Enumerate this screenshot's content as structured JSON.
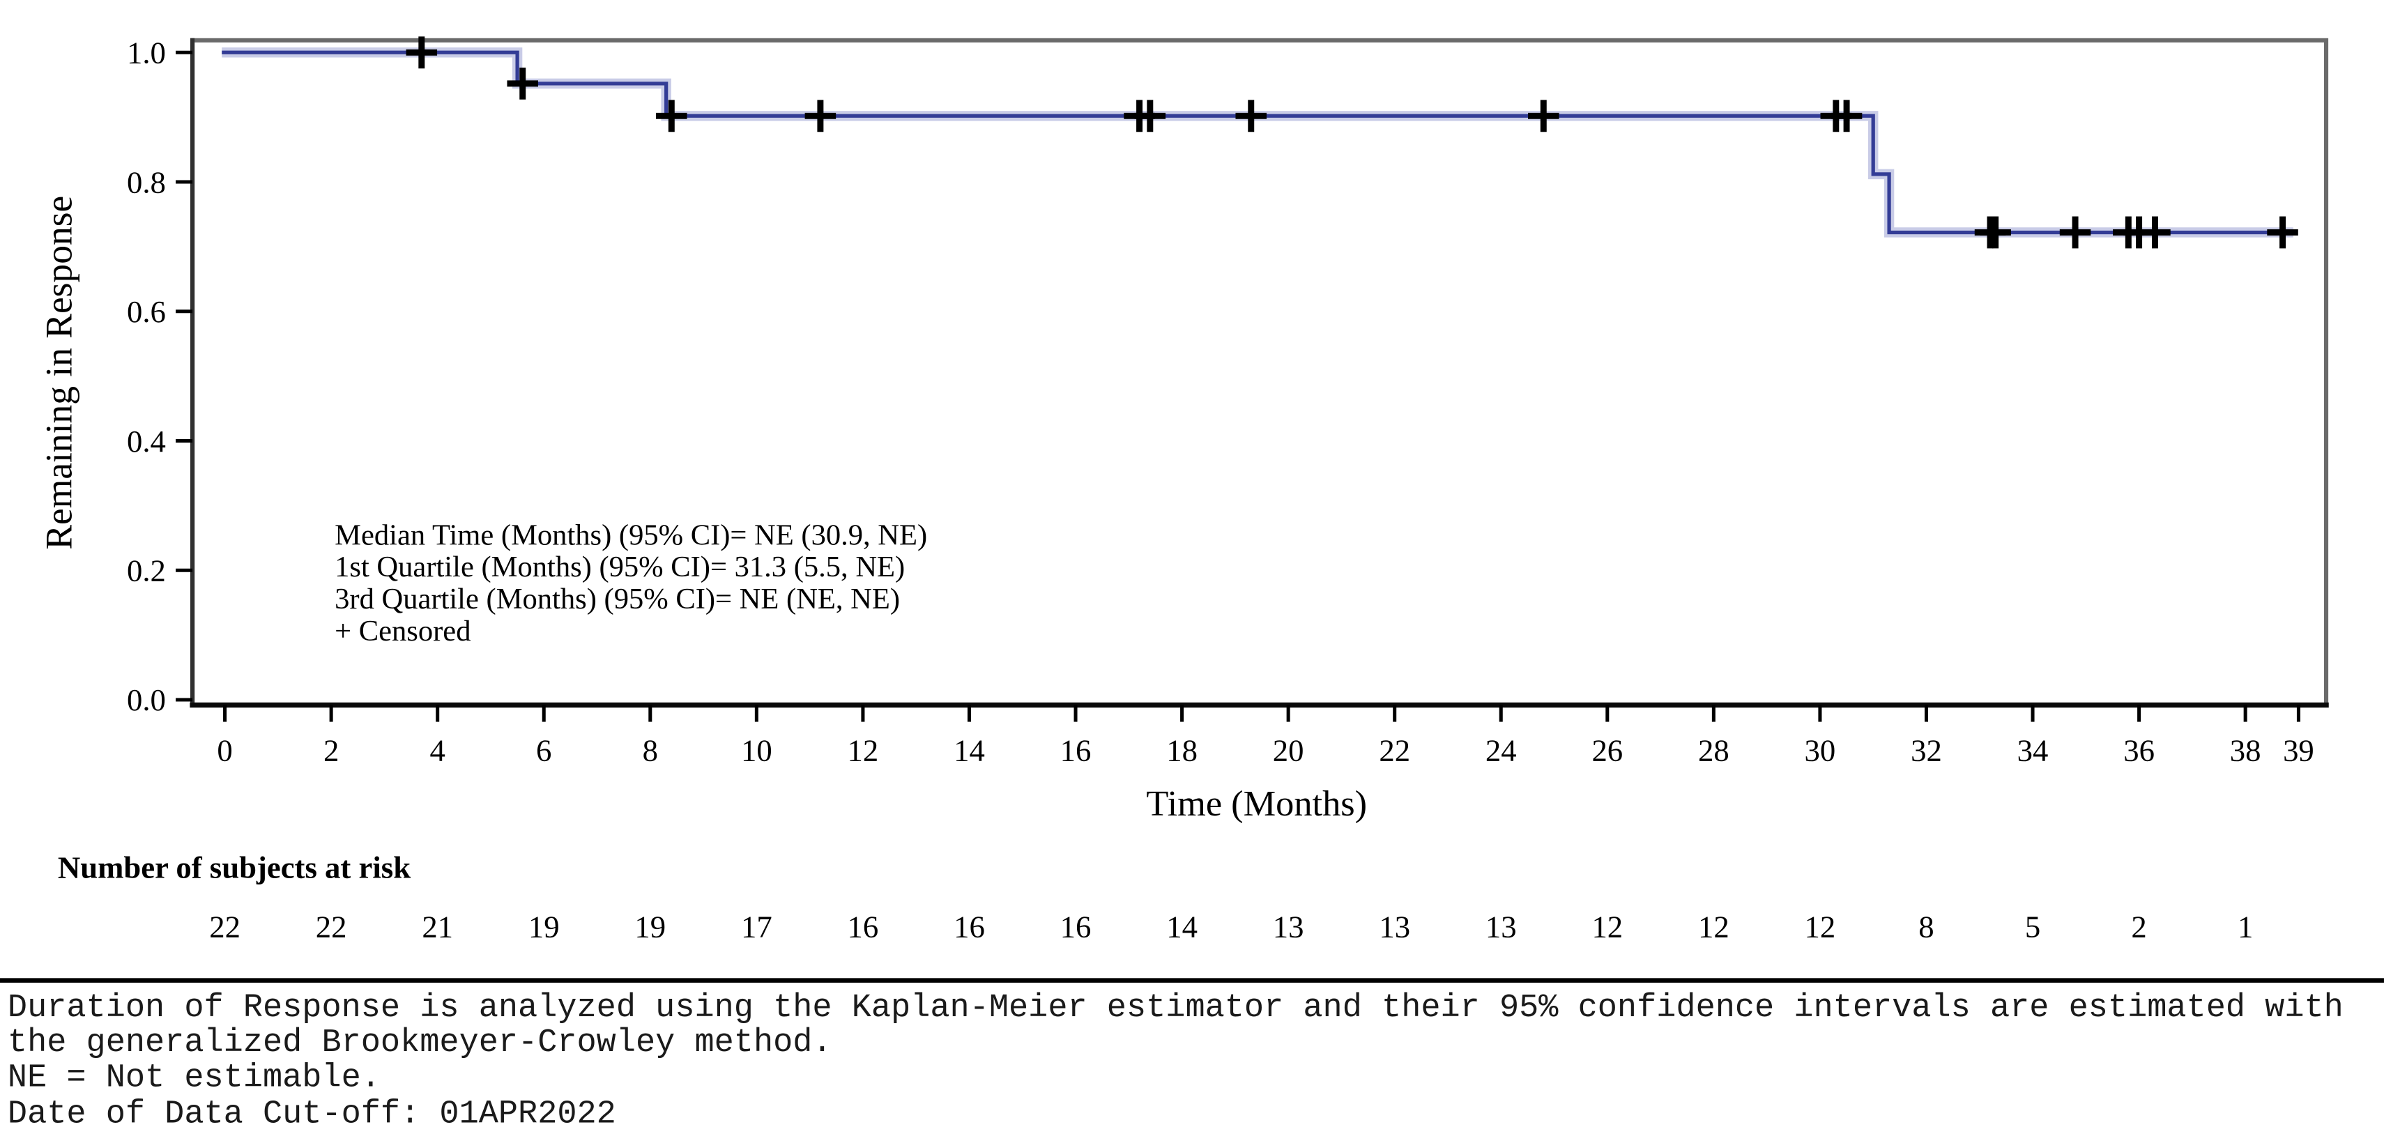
{
  "chart_data": {
    "type": "line",
    "subtype": "kaplan-meier-step",
    "title": "",
    "xlabel": "Time (Months)",
    "ylabel": "Remaining in Response",
    "xlim": [
      0,
      39
    ],
    "ylim": [
      0.0,
      1.0
    ],
    "grid": false,
    "x_ticks": [
      0,
      2,
      4,
      6,
      8,
      10,
      12,
      14,
      16,
      18,
      20,
      22,
      24,
      26,
      28,
      30,
      32,
      34,
      36,
      38,
      39
    ],
    "y_ticks": [
      "1.0",
      "0.8",
      "0.6",
      "0.4",
      "0.2",
      "0.0"
    ],
    "series": [
      {
        "name": "km-curve",
        "steps": [
          {
            "t": 0.0,
            "s": 1.0
          },
          {
            "t": 5.5,
            "s": 0.952
          },
          {
            "t": 8.3,
            "s": 0.902
          },
          {
            "t": 31.0,
            "s": 0.812
          },
          {
            "t": 31.3,
            "s": 0.722
          }
        ],
        "end_time": 38.9,
        "censor_times": [
          3.7,
          5.6,
          8.4,
          11.2,
          17.2,
          17.4,
          19.3,
          24.8,
          30.3,
          30.5,
          33.2,
          33.3,
          34.8,
          35.8,
          36.0,
          36.3,
          38.7
        ]
      }
    ],
    "annotation_lines": [
      "Median Time (Months) (95% CI)= NE (30.9, NE)",
      "1st Quartile (Months) (95% CI)= 31.3 (5.5, NE)",
      "3rd Quartile (Months) (95% CI)= NE (NE, NE)",
      "+ Censored"
    ],
    "legend_position": "none"
  },
  "at_risk": {
    "heading": "Number of subjects at risk",
    "times": [
      0,
      2,
      4,
      6,
      8,
      10,
      12,
      14,
      16,
      18,
      20,
      22,
      24,
      26,
      28,
      30,
      32,
      34,
      36,
      38
    ],
    "counts": [
      22,
      22,
      21,
      19,
      19,
      17,
      16,
      16,
      16,
      14,
      13,
      13,
      13,
      12,
      12,
      12,
      8,
      5,
      2,
      1
    ]
  },
  "footer": {
    "lines": [
      "Duration of Response is analyzed using the Kaplan-Meier estimator and their 95% confidence intervals are estimated with",
      "the generalized Brookmeyer-Crowley method.",
      "NE = Not estimable.",
      "Date of Data Cut-off: 01APR2022"
    ]
  },
  "colors": {
    "curve": "#333c96",
    "curve_halo": "#c9cce7",
    "censor": "#000000",
    "box_border": "#6a6a6a",
    "left_axis": "#303030",
    "bottom_axis": "#0a0a0a",
    "tick": "#000000",
    "text": "#000000",
    "background": "#ffffff"
  }
}
